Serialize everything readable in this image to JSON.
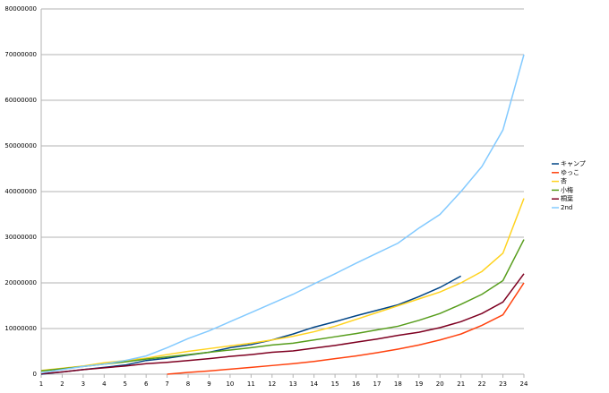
{
  "chart_data": {
    "type": "line",
    "x": [
      1,
      2,
      3,
      4,
      5,
      6,
      7,
      8,
      9,
      10,
      11,
      12,
      13,
      14,
      15,
      16,
      17,
      18,
      19,
      20,
      21,
      22,
      23,
      24
    ],
    "xlim": [
      1,
      24
    ],
    "xticks": [
      1,
      2,
      3,
      4,
      5,
      6,
      7,
      8,
      9,
      10,
      11,
      12,
      13,
      14,
      15,
      16,
      17,
      18,
      19,
      20,
      21,
      22,
      23,
      24
    ],
    "ylim": [
      0,
      80000000
    ],
    "yticks": [
      0,
      10000000,
      20000000,
      30000000,
      40000000,
      50000000,
      60000000,
      70000000,
      80000000
    ],
    "grid": true,
    "legend": "right",
    "series": [
      {
        "name": "キャンプ",
        "color": "#004586",
        "values": [
          0,
          500000,
          1000000,
          1500000,
          2000000,
          3000000,
          3500000,
          4200000,
          4800000,
          5800000,
          6500000,
          7500000,
          8800000,
          10300000,
          11500000,
          12800000,
          14000000,
          15200000,
          17000000,
          19000000,
          21500000,
          null,
          null,
          null
        ]
      },
      {
        "name": "ゆっこ",
        "color": "#ff420e",
        "values": [
          null,
          null,
          null,
          null,
          null,
          null,
          0,
          400000,
          700000,
          1100000,
          1500000,
          1900000,
          2300000,
          2800000,
          3400000,
          4000000,
          4700000,
          5500000,
          6400000,
          7500000,
          8800000,
          10700000,
          13000000,
          20000000
        ]
      },
      {
        "name": "杏",
        "color": "#ffd320",
        "values": [
          800000,
          1300000,
          1800000,
          2500000,
          3000000,
          3500000,
          4300000,
          5000000,
          5600000,
          6200000,
          6800000,
          7500000,
          8300000,
          9300000,
          10500000,
          12000000,
          13500000,
          15000000,
          16500000,
          18000000,
          20000000,
          22500000,
          26500000,
          38500000
        ]
      },
      {
        "name": "小梅",
        "color": "#579d1c",
        "values": [
          700000,
          1200000,
          1700000,
          2200000,
          2700000,
          3300000,
          3800000,
          4300000,
          4800000,
          5300000,
          5800000,
          6400000,
          6800000,
          7500000,
          8200000,
          8900000,
          9700000,
          10500000,
          11800000,
          13300000,
          15300000,
          17500000,
          20500000,
          29500000
        ]
      },
      {
        "name": "桐葉",
        "color": "#7e0021",
        "values": [
          100000,
          500000,
          1000000,
          1400000,
          1800000,
          2300000,
          2600000,
          3000000,
          3400000,
          3900000,
          4300000,
          4800000,
          5100000,
          5700000,
          6300000,
          7000000,
          7700000,
          8500000,
          9200000,
          10200000,
          11500000,
          13300000,
          15800000,
          22000000
        ]
      },
      {
        "name": "2nd",
        "color": "#83caff",
        "values": [
          300000,
          1000000,
          1700000,
          2200000,
          3000000,
          4000000,
          5800000,
          7800000,
          9500000,
          11500000,
          13500000,
          15500000,
          17500000,
          19800000,
          22000000,
          24300000,
          26500000,
          28700000,
          32000000,
          35000000,
          40000000,
          45500000,
          53500000,
          70000000
        ]
      }
    ]
  }
}
